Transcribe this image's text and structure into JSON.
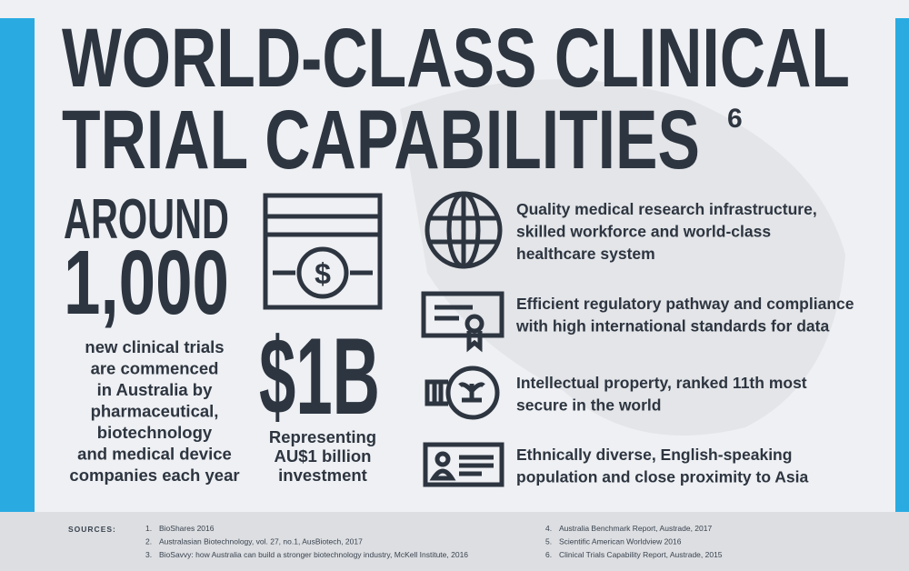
{
  "header": {
    "title_lines": [
      "WORLD-CLASS CLINICAL",
      "TRIAL CAPABILITIES"
    ],
    "superscript": "6"
  },
  "stat": {
    "prefix": "AROUND",
    "number": "1,000",
    "description_lines": [
      "new clinical trials",
      "are commenced",
      "in Australia by",
      "pharmaceutical,",
      "biotechnology",
      "and medical device",
      "companies each year"
    ]
  },
  "investment": {
    "amount": "$1B",
    "caption_lines": [
      "Representing",
      "AU$1 billion",
      "investment"
    ]
  },
  "features": [
    {
      "lines": [
        "Quality medical research infrastructure,",
        "skilled workforce and world-class",
        "healthcare system"
      ]
    },
    {
      "lines": [
        "Efficient regulatory pathway and compliance",
        "with high international standards for data"
      ]
    },
    {
      "lines": [
        "Intellectual property, ranked 11th most",
        "secure in the world"
      ]
    },
    {
      "lines": [
        "Ethnically diverse, English-speaking",
        "population and close proximity to Asia"
      ]
    }
  ],
  "sources": {
    "label": "SOURCES:",
    "items": [
      {
        "num": "1.",
        "text": "BioShares 2016"
      },
      {
        "num": "2.",
        "text": "Australasian Biotechnology, vol. 27, no.1, AusBiotech, 2017"
      },
      {
        "num": "3.",
        "text": "BioSavvy: how Australia can build a stronger biotechnology industry, McKell Institute, 2016"
      },
      {
        "num": "4.",
        "text": "Australia Benchmark Report, Austrade, 2017"
      },
      {
        "num": "5.",
        "text": "Scientific American Worldview 2016"
      },
      {
        "num": "6.",
        "text": "Clinical Trials Capability Report, Austrade, 2015"
      }
    ]
  }
}
